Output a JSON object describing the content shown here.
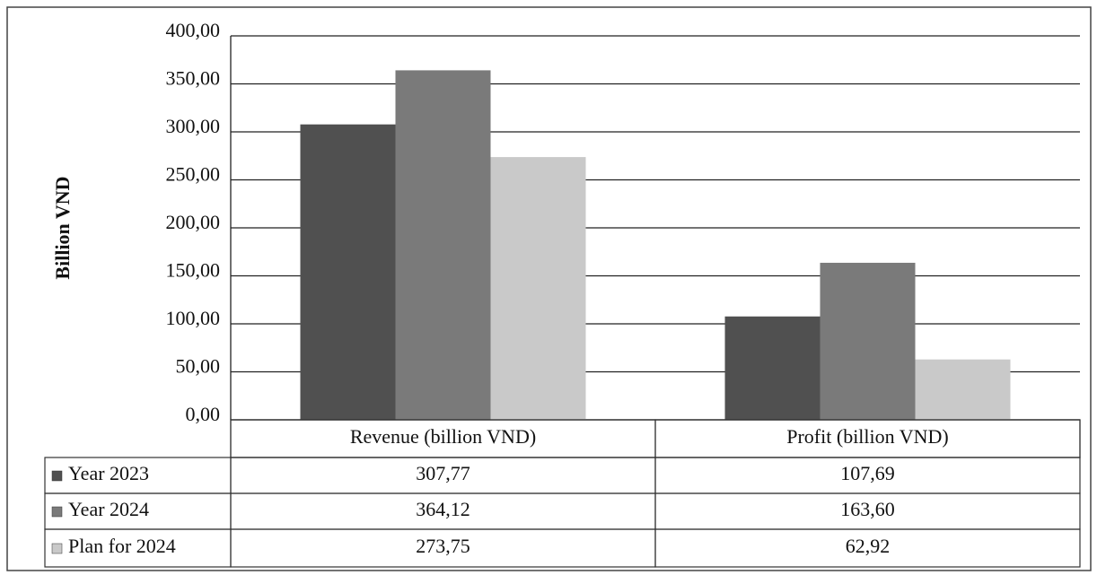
{
  "chart_data": {
    "type": "bar",
    "ylabel": "Billion VND",
    "categories": [
      "Revenue (billion VND)",
      "Profit (billion VND)"
    ],
    "series": [
      {
        "name": "Year 2023",
        "color": "#505050",
        "values": [
          307.77,
          107.69
        ],
        "value_labels": [
          "307,77",
          "107,69"
        ]
      },
      {
        "name": "Year 2024",
        "color": "#7a7a7a",
        "values": [
          364.12,
          163.6
        ],
        "value_labels": [
          "364,12",
          "163,60"
        ]
      },
      {
        "name": "Plan for 2024",
        "color": "#c9c9c9",
        "values": [
          273.75,
          62.92
        ],
        "value_labels": [
          "273,75",
          "62,92"
        ]
      }
    ],
    "ylim": [
      0,
      400
    ],
    "yticks": [
      {
        "value": 0,
        "label": "0,00"
      },
      {
        "value": 50,
        "label": "50,00"
      },
      {
        "value": 100,
        "label": "100,00"
      },
      {
        "value": 150,
        "label": "150,00"
      },
      {
        "value": 200,
        "label": "200,00"
      },
      {
        "value": 250,
        "label": "250,00"
      },
      {
        "value": 300,
        "label": "300,00"
      },
      {
        "value": 350,
        "label": "350,00"
      },
      {
        "value": 400,
        "label": "400,00"
      }
    ],
    "grid": true
  }
}
